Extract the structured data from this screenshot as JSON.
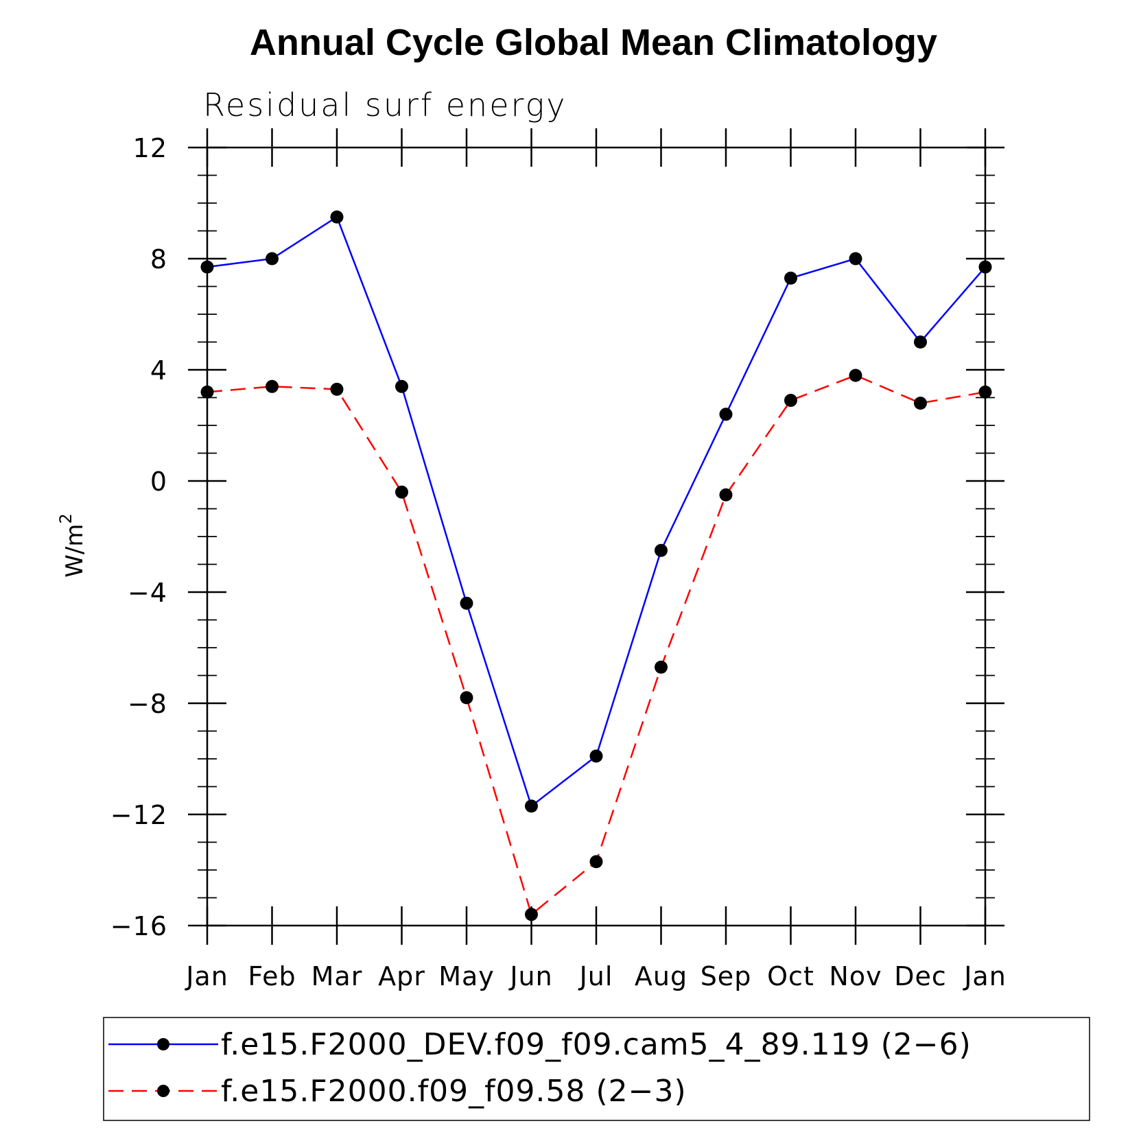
{
  "chart_data": {
    "type": "line",
    "title": "Annual Cycle Global Mean Climatology",
    "subtitle": "Residual surf energy",
    "ylabel_base": "W/m",
    "ylabel_exponent": "2",
    "categories": [
      "Jan",
      "Feb",
      "Mar",
      "Apr",
      "May",
      "Jun",
      "Jul",
      "Aug",
      "Sep",
      "Oct",
      "Nov",
      "Dec",
      "Jan"
    ],
    "ylim": [
      -16,
      12
    ],
    "yticks": [
      {
        "value": 12,
        "label": "12"
      },
      {
        "value": 8,
        "label": "8"
      },
      {
        "value": 4,
        "label": "4"
      },
      {
        "value": 0,
        "label": "0"
      },
      {
        "value": -4,
        "label": "−4"
      },
      {
        "value": -8,
        "label": "−8"
      },
      {
        "value": -12,
        "label": "−12"
      },
      {
        "value": -16,
        "label": "−16"
      }
    ],
    "yminor_step": 1,
    "series": [
      {
        "name": "f.e15.F2000_DEV.f09_f09.cam5_4_89.119 (2−6)",
        "color": "#0000ff",
        "dash": "solid",
        "marker": "filled-circle",
        "values": [
          7.7,
          8.0,
          9.5,
          3.4,
          -4.4,
          -11.7,
          -9.9,
          -2.5,
          2.4,
          7.3,
          8.0,
          5.0,
          7.7
        ]
      },
      {
        "name": "f.e15.F2000.f09_f09.58 (2−3)",
        "color": "#ff0000",
        "dash": "dashed",
        "marker": "filled-circle",
        "values": [
          3.2,
          3.4,
          3.3,
          -0.4,
          -7.8,
          -15.6,
          -13.7,
          -6.7,
          -0.5,
          2.9,
          3.8,
          2.8,
          3.2
        ]
      }
    ],
    "legend_position": "bottom"
  }
}
